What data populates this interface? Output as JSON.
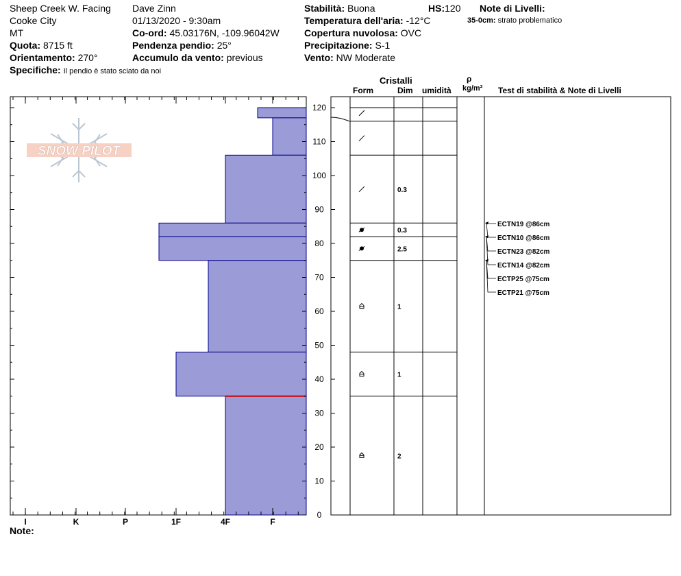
{
  "header": {
    "location": "Sheep Creek W. Facing",
    "city": "Cooke City",
    "state": "MT",
    "observer": "Dave Zinn",
    "datetime": "01/13/2020 - 9:30am",
    "quota_label": "Quota:",
    "quota_value": "8715 ft",
    "orient_label": "Orientamento:",
    "orient_value": "270°",
    "coord_label": "Co-ord:",
    "coord_value": "45.03176N, -109.96042W",
    "slope_label": "Pendenza pendio:",
    "slope_value": "25°",
    "wind_load_label": "Accumulo da vento:",
    "wind_load_value": "previous",
    "specifics_label": "Specifiche:",
    "specifics_value": "Il pendio è stato sciato da noi",
    "stability_label": "Stabilità:",
    "stability_value": "Buona",
    "hs_label": "HS:",
    "hs_value": "120",
    "air_temp_label": "Temperatura dell'aria:",
    "air_temp_value": "-12°C",
    "cloud_label": "Copertura nuvolosa:",
    "cloud_value": "OVC",
    "precip_label": "Precipitazione:",
    "precip_value": "S-1",
    "wind_label": "Vento:",
    "wind_value": "NW Moderate",
    "layer_notes_label": "Note di Livelli:",
    "layer_note_depth": "35-0cm:",
    "layer_note_text": "strato problematico"
  },
  "columns": {
    "crystals": "Cristalli",
    "form": "Form",
    "dim": "Dim",
    "humidity": "umidità",
    "rho": "ρ",
    "density_unit": "kg/m³",
    "stability_notes": "Test di stabilità & Note di Livelli"
  },
  "logo_text": "SNOW PILOT",
  "footer_note_label": "Note:",
  "colors": {
    "layer_fill": "#9b9bd7",
    "layer_stroke": "#00008b",
    "problem_layer": "#cc0000",
    "temp_line": "#000000"
  },
  "chart_data": {
    "type": "bar",
    "orientation": "horizontal",
    "y_axis": {
      "min": 0,
      "max": 120,
      "ticks": [
        0,
        10,
        20,
        30,
        40,
        50,
        60,
        70,
        80,
        90,
        100,
        110,
        120
      ],
      "unit": "cm"
    },
    "hardness_scale": [
      "I",
      "K",
      "P",
      "1F",
      "4F",
      "F"
    ],
    "layers": [
      {
        "top": 120,
        "bottom": 117,
        "hardness": "F+"
      },
      {
        "top": 117,
        "bottom": 106,
        "hardness": "F"
      },
      {
        "top": 106,
        "bottom": 86,
        "hardness": "4F"
      },
      {
        "top": 86,
        "bottom": 82,
        "hardness": "1F-"
      },
      {
        "top": 82,
        "bottom": 75,
        "hardness": "1F-"
      },
      {
        "top": 75,
        "bottom": 48,
        "hardness": "4F+"
      },
      {
        "top": 48,
        "bottom": 35,
        "hardness": "1F"
      },
      {
        "top": 35,
        "bottom": 0,
        "hardness": "4F"
      }
    ],
    "crystal_rows": [
      {
        "top": 120,
        "bottom": 116,
        "form": "fragmented",
        "dim": ""
      },
      {
        "top": 116,
        "bottom": 106,
        "form": "fragmented",
        "dim": ""
      },
      {
        "top": 106,
        "bottom": 86,
        "form": "fragmented",
        "dim": "0.3"
      },
      {
        "top": 86,
        "bottom": 82,
        "form": "rounded-faceted",
        "dim": "0.3"
      },
      {
        "top": 82,
        "bottom": 75,
        "form": "rounded-faceted",
        "dim": "2.5"
      },
      {
        "top": 75,
        "bottom": 48,
        "form": "depth-hoar",
        "dim": "1"
      },
      {
        "top": 48,
        "bottom": 35,
        "form": "depth-hoar",
        "dim": "1"
      },
      {
        "top": 35,
        "bottom": 0,
        "form": "depth-hoar",
        "dim": "2"
      }
    ],
    "problem_layer_depth": 35,
    "stability_tests": [
      {
        "label": "ECTN19 @86cm",
        "depth": 86
      },
      {
        "label": "ECTN10 @86cm",
        "depth": 86
      },
      {
        "label": "ECTN23 @82cm",
        "depth": 82
      },
      {
        "label": "ECTN14 @82cm",
        "depth": 82
      },
      {
        "label": "ECTP25 @75cm",
        "depth": 75
      },
      {
        "label": "ECTP21 @75cm",
        "depth": 75
      }
    ]
  }
}
